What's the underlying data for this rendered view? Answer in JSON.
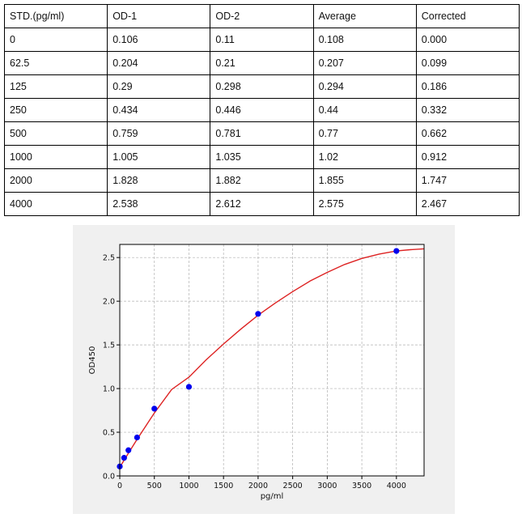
{
  "table": {
    "headers": [
      "STD.(pg/ml)",
      "OD-1",
      "OD-2",
      "Average",
      "Corrected"
    ],
    "rows": [
      [
        "0",
        "0.106",
        "0.11",
        "0.108",
        "0.000"
      ],
      [
        "62.5",
        "0.204",
        "0.21",
        "0.207",
        "0.099"
      ],
      [
        "125",
        "0.29",
        "0.298",
        "0.294",
        "0.186"
      ],
      [
        "250",
        "0.434",
        "0.446",
        "0.44",
        "0.332"
      ],
      [
        "500",
        "0.759",
        "0.781",
        "0.77",
        "0.662"
      ],
      [
        "1000",
        "1.005",
        "1.035",
        "1.02",
        "0.912"
      ],
      [
        "2000",
        "1.828",
        "1.882",
        "1.855",
        "1.747"
      ],
      [
        "4000",
        "2.538",
        "2.612",
        "2.575",
        "2.467"
      ]
    ]
  },
  "chart_data": {
    "type": "scatter",
    "title": "",
    "xlabel": "pg/ml",
    "ylabel": "OD450",
    "xlim": [
      0,
      4400
    ],
    "ylim": [
      0,
      2.65
    ],
    "xticks": [
      0,
      500,
      1000,
      1500,
      2000,
      2500,
      3000,
      3500,
      4000
    ],
    "yticks": [
      0.0,
      0.5,
      1.0,
      1.5,
      2.0,
      2.5
    ],
    "xtick_labels": [
      "0",
      "500",
      "1000",
      "1500",
      "2000",
      "2500",
      "3000",
      "3500",
      "4000"
    ],
    "ytick_labels": [
      "0.0",
      "0.5",
      "1.0",
      "1.5",
      "2.0",
      "2.5"
    ],
    "grid": true,
    "points": {
      "x": [
        0,
        62.5,
        125,
        250,
        500,
        1000,
        2000,
        4000
      ],
      "y": [
        0.108,
        0.207,
        0.294,
        0.44,
        0.77,
        1.02,
        1.855,
        2.575
      ]
    },
    "fit_curve": {
      "x": [
        0,
        125,
        250,
        500,
        750,
        1000,
        1250,
        1500,
        1750,
        2000,
        2250,
        2500,
        2750,
        3000,
        3250,
        3500,
        3750,
        4000,
        4200,
        4400
      ],
      "y": [
        0.1,
        0.26,
        0.42,
        0.72,
        0.99,
        1.13,
        1.33,
        1.51,
        1.68,
        1.84,
        1.98,
        2.11,
        2.23,
        2.33,
        2.42,
        2.49,
        2.54,
        2.575,
        2.59,
        2.6
      ]
    },
    "colors": {
      "points": "#0000ee",
      "curve": "#dd2222",
      "grid": "#b0b0b0"
    }
  }
}
